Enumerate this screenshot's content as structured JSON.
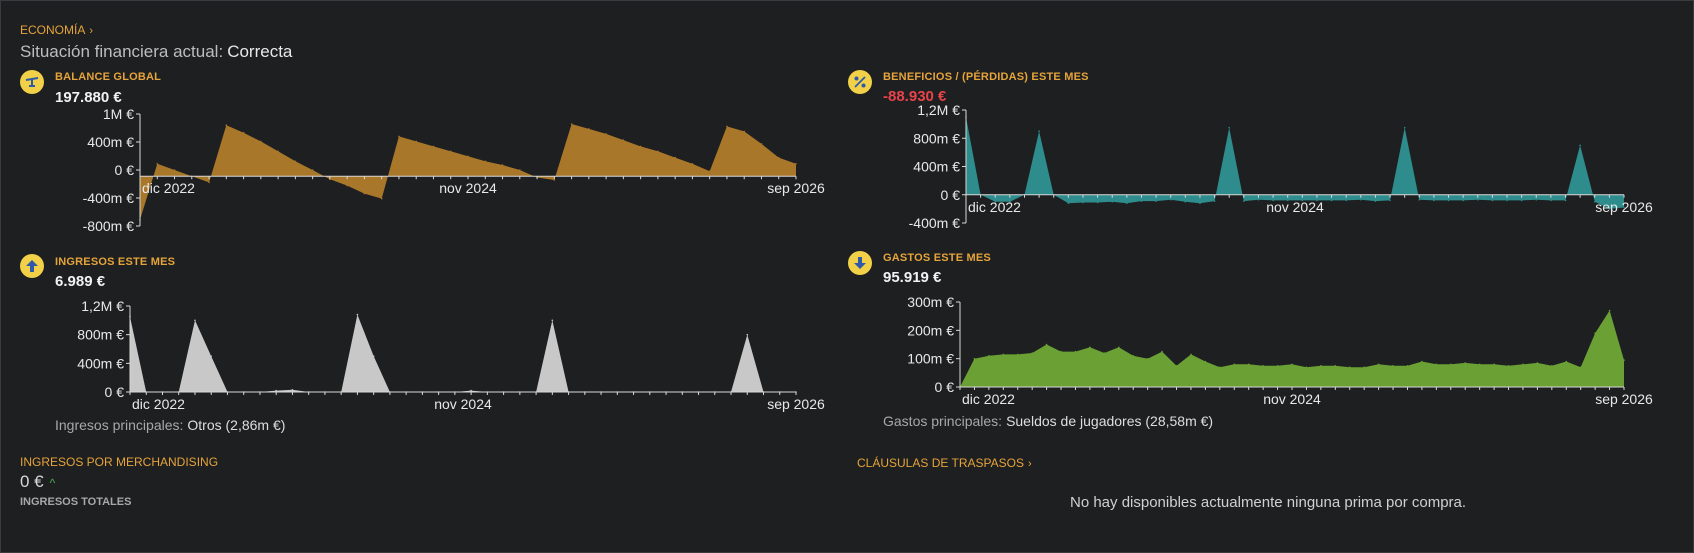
{
  "header": {
    "section_link": "ECONOMÍA",
    "status_label": "Situación financiera actual:",
    "status_value": "Correcta"
  },
  "panels": {
    "balance": {
      "title": "BALANCE GLOBAL",
      "value": "197.880 €",
      "icon": "scale-icon"
    },
    "profit": {
      "title": "BENEFICIOS / (PÉRDIDAS) ESTE MES",
      "value": "-88.930 €",
      "icon": "percent-icon"
    },
    "income": {
      "title": "INGRESOS ESTE MES",
      "value": "6.989 €",
      "icon": "arrow-up-icon",
      "caption_label": "Ingresos principales:",
      "caption_value": "Otros (2,86m €)"
    },
    "expenses": {
      "title": "GASTOS ESTE MES",
      "value": "95.919 €",
      "icon": "arrow-down-icon",
      "caption_label": "Gastos principales:",
      "caption_value": "Sueldos de jugadores (28,58m €)"
    }
  },
  "merch": {
    "title": "INGRESOS POR MERCHANDISING",
    "value": "0 €",
    "sublabel": "INGRESOS TOTALES"
  },
  "transfers": {
    "title": "CLÁUSULAS DE TRASPASOS",
    "empty_message": "No hay disponibles actualmente ninguna prima por compra."
  },
  "colors": {
    "accent": "#e6a43a",
    "balance": "#a8772a",
    "profit": "#2e8c8c",
    "income": "#c8c8c8",
    "expenses": "#6aa034",
    "negative": "#e8434a"
  },
  "chart_data": [
    {
      "id": "balance",
      "type": "area",
      "x_ticks": [
        "dic 2022",
        "nov 2024",
        "sep 2026"
      ],
      "y_ticks": [
        "1M €",
        "400m €",
        "0 €",
        "-400m €",
        "-800m €"
      ],
      "ylim": [
        -800000,
        1000000
      ],
      "values": [
        -700000,
        200000,
        100000,
        0,
        -100000,
        820000,
        700000,
        560000,
        400000,
        240000,
        100000,
        -50000,
        -150000,
        -280000,
        -360000,
        640000,
        560000,
        480000,
        400000,
        320000,
        240000,
        180000,
        100000,
        -20000,
        -60000,
        840000,
        760000,
        680000,
        580000,
        480000,
        400000,
        300000,
        200000,
        80000,
        800000,
        720000,
        520000,
        300000,
        200000
      ]
    },
    {
      "id": "profit",
      "type": "area",
      "x_ticks": [
        "dic 2022",
        "nov 2024",
        "sep 2026"
      ],
      "y_ticks": [
        "1,2M €",
        "800m €",
        "400m €",
        "0 €",
        "-400m €"
      ],
      "ylim": [
        -400000,
        1200000
      ],
      "values": [
        1100000,
        0,
        -100000,
        -100000,
        0,
        900000,
        0,
        -120000,
        -110000,
        -110000,
        -100000,
        -120000,
        -90000,
        -90000,
        -70000,
        -100000,
        -120000,
        -90000,
        950000,
        -90000,
        -70000,
        -80000,
        -80000,
        -80000,
        -80000,
        -80000,
        -80000,
        -70000,
        -90000,
        -80000,
        950000,
        -70000,
        -80000,
        -80000,
        -80000,
        -70000,
        -80000,
        -80000,
        -80000,
        -70000,
        -80000,
        -80000,
        700000,
        -100000,
        -200000,
        -180000
      ]
    },
    {
      "id": "income",
      "type": "area",
      "x_ticks": [
        "dic 2022",
        "nov 2024",
        "sep 2026"
      ],
      "y_ticks": [
        "1,2M €",
        "800m €",
        "400m €",
        "0 €"
      ],
      "ylim": [
        0,
        1200000
      ],
      "values": [
        1050000,
        0,
        0,
        0,
        1000000,
        500000,
        0,
        0,
        0,
        20000,
        30000,
        0,
        0,
        0,
        1080000,
        500000,
        0,
        0,
        0,
        0,
        0,
        20000,
        0,
        0,
        0,
        0,
        1000000,
        0,
        0,
        0,
        0,
        0,
        0,
        0,
        0,
        0,
        0,
        0,
        800000,
        0,
        0,
        0
      ]
    },
    {
      "id": "expenses",
      "type": "area",
      "x_ticks": [
        "dic 2022",
        "nov 2024",
        "sep 2026"
      ],
      "y_ticks": [
        "300m €",
        "200m €",
        "100m €",
        "0 €"
      ],
      "ylim": [
        0,
        300000
      ],
      "values": [
        0,
        100000,
        110000,
        115000,
        115000,
        120000,
        150000,
        125000,
        125000,
        140000,
        120000,
        140000,
        110000,
        100000,
        125000,
        75000,
        115000,
        90000,
        70000,
        80000,
        80000,
        75000,
        75000,
        80000,
        70000,
        75000,
        75000,
        70000,
        70000,
        80000,
        75000,
        75000,
        90000,
        80000,
        80000,
        85000,
        80000,
        80000,
        75000,
        80000,
        85000,
        75000,
        90000,
        70000,
        190000,
        270000,
        95000
      ]
    }
  ]
}
